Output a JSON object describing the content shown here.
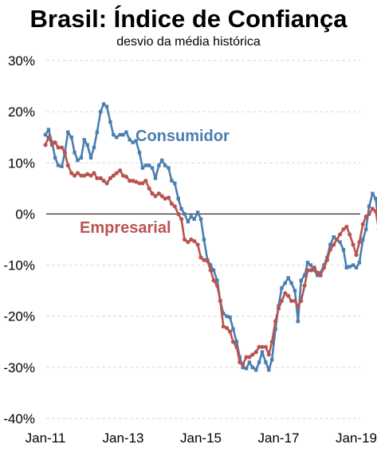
{
  "chart_data": {
    "type": "line",
    "title": "Brasil: Índice de Confiança",
    "subtitle": "desvio da média histórica",
    "xlabel": "",
    "ylabel": "",
    "x_range": [
      2011.0,
      2019.083
    ],
    "ylim": [
      -40,
      30
    ],
    "y_ticks": [
      30,
      20,
      10,
      0,
      -10,
      -20,
      -30,
      -40
    ],
    "y_tick_labels": [
      "30%",
      "20%",
      "10%",
      "0%",
      "-10%",
      "-20%",
      "-30%",
      "-40%"
    ],
    "x_ticks": [
      2011,
      2013,
      2015,
      2017,
      2019
    ],
    "x_tick_labels": [
      "Jan-11",
      "Jan-13",
      "Jan-15",
      "Jan-17",
      "Jan-19"
    ],
    "grid": true,
    "zero_line": true,
    "series": [
      {
        "name": "Consumidor",
        "color": "#4a7eb0",
        "marker": "square",
        "points": [
          [
            2011.0,
            15.5
          ],
          [
            2011.08,
            16.5
          ],
          [
            2011.17,
            14
          ],
          [
            2011.25,
            11
          ],
          [
            2011.33,
            9.5
          ],
          [
            2011.42,
            9.3
          ],
          [
            2011.5,
            12
          ],
          [
            2011.58,
            16
          ],
          [
            2011.67,
            15
          ],
          [
            2011.75,
            12
          ],
          [
            2011.83,
            10.5
          ],
          [
            2011.92,
            11
          ],
          [
            2012.0,
            14.5
          ],
          [
            2012.08,
            13.5
          ],
          [
            2012.17,
            11
          ],
          [
            2012.25,
            13
          ],
          [
            2012.33,
            16
          ],
          [
            2012.42,
            20
          ],
          [
            2012.5,
            21.5
          ],
          [
            2012.58,
            21
          ],
          [
            2012.67,
            18
          ],
          [
            2012.75,
            15.5
          ],
          [
            2012.83,
            15
          ],
          [
            2012.92,
            15.5
          ],
          [
            2013.0,
            15.5
          ],
          [
            2013.08,
            16
          ],
          [
            2013.17,
            14.5
          ],
          [
            2013.25,
            14
          ],
          [
            2013.33,
            14.3
          ],
          [
            2013.42,
            12
          ],
          [
            2013.5,
            9
          ],
          [
            2013.58,
            9.5
          ],
          [
            2013.67,
            9.5
          ],
          [
            2013.75,
            9
          ],
          [
            2013.83,
            7
          ],
          [
            2013.92,
            9.5
          ],
          [
            2014.0,
            10.5
          ],
          [
            2014.08,
            9.5
          ],
          [
            2014.17,
            9
          ],
          [
            2014.25,
            6.5
          ],
          [
            2014.33,
            6
          ],
          [
            2014.42,
            3
          ],
          [
            2014.5,
            1
          ],
          [
            2014.58,
            0
          ],
          [
            2014.67,
            -1.5
          ],
          [
            2014.75,
            -0.5
          ],
          [
            2014.83,
            -1
          ],
          [
            2014.92,
            0.3
          ],
          [
            2015.0,
            -1
          ],
          [
            2015.08,
            -5
          ],
          [
            2015.17,
            -9
          ],
          [
            2015.25,
            -10
          ],
          [
            2015.33,
            -11
          ],
          [
            2015.42,
            -13
          ],
          [
            2015.5,
            -17
          ],
          [
            2015.58,
            -19.5
          ],
          [
            2015.67,
            -20
          ],
          [
            2015.75,
            -20.2
          ],
          [
            2015.83,
            -22.5
          ],
          [
            2015.92,
            -25
          ],
          [
            2016.0,
            -28
          ],
          [
            2016.08,
            -30
          ],
          [
            2016.17,
            -30.2
          ],
          [
            2016.25,
            -29
          ],
          [
            2016.33,
            -30
          ],
          [
            2016.42,
            -30.5
          ],
          [
            2016.5,
            -29
          ],
          [
            2016.58,
            -27
          ],
          [
            2016.67,
            -29
          ],
          [
            2016.75,
            -30.5
          ],
          [
            2016.83,
            -28.5
          ],
          [
            2016.92,
            -22.5
          ],
          [
            2017.0,
            -18
          ],
          [
            2017.08,
            -14.5
          ],
          [
            2017.17,
            -13.5
          ],
          [
            2017.25,
            -12.5
          ],
          [
            2017.33,
            -13.5
          ],
          [
            2017.42,
            -15
          ],
          [
            2017.5,
            -21
          ],
          [
            2017.58,
            -13
          ],
          [
            2017.67,
            -12
          ],
          [
            2017.75,
            -9.5
          ],
          [
            2017.83,
            -10
          ],
          [
            2017.92,
            -11
          ],
          [
            2018.0,
            -12
          ],
          [
            2018.08,
            -11.5
          ],
          [
            2018.17,
            -10
          ],
          [
            2018.25,
            -8.5
          ],
          [
            2018.33,
            -6
          ],
          [
            2018.42,
            -4.5
          ],
          [
            2018.5,
            -5
          ],
          [
            2018.58,
            -5.5
          ],
          [
            2018.67,
            -7
          ],
          [
            2018.75,
            -10.5
          ],
          [
            2018.83,
            -10.3
          ],
          [
            2018.92,
            -10
          ],
          [
            2019.0,
            -10.5
          ],
          [
            2019.08,
            -9.5
          ],
          [
            2019.17,
            -5
          ],
          [
            2019.25,
            -3
          ],
          [
            2019.33,
            1.5
          ],
          [
            2019.42,
            4
          ],
          [
            2019.5,
            3
          ],
          [
            2019.58,
            -2
          ]
        ]
      },
      {
        "name": "Empresarial",
        "color": "#b85450",
        "marker": "circle",
        "points": [
          [
            2011.0,
            13.5
          ],
          [
            2011.08,
            15
          ],
          [
            2011.17,
            13.5
          ],
          [
            2011.25,
            14
          ],
          [
            2011.33,
            13
          ],
          [
            2011.42,
            13
          ],
          [
            2011.5,
            12
          ],
          [
            2011.58,
            9.5
          ],
          [
            2011.67,
            8
          ],
          [
            2011.75,
            7.5
          ],
          [
            2011.83,
            8
          ],
          [
            2011.92,
            7.5
          ],
          [
            2012.0,
            7.5
          ],
          [
            2012.08,
            7.8
          ],
          [
            2012.17,
            7.5
          ],
          [
            2012.25,
            8
          ],
          [
            2012.33,
            7
          ],
          [
            2012.42,
            7
          ],
          [
            2012.5,
            6.5
          ],
          [
            2012.58,
            6
          ],
          [
            2012.67,
            7
          ],
          [
            2012.75,
            7.5
          ],
          [
            2012.83,
            8
          ],
          [
            2012.92,
            8.5
          ],
          [
            2013.0,
            7.5
          ],
          [
            2013.08,
            7.3
          ],
          [
            2013.17,
            6.5
          ],
          [
            2013.25,
            6.5
          ],
          [
            2013.33,
            6.3
          ],
          [
            2013.42,
            6
          ],
          [
            2013.5,
            6
          ],
          [
            2013.58,
            6.5
          ],
          [
            2013.67,
            5
          ],
          [
            2013.75,
            4
          ],
          [
            2013.83,
            3.5
          ],
          [
            2013.92,
            4
          ],
          [
            2014.0,
            3.5
          ],
          [
            2014.08,
            3
          ],
          [
            2014.17,
            3.2
          ],
          [
            2014.25,
            2
          ],
          [
            2014.33,
            1.5
          ],
          [
            2014.42,
            0
          ],
          [
            2014.5,
            -1
          ],
          [
            2014.58,
            -5
          ],
          [
            2014.67,
            -5.5
          ],
          [
            2014.75,
            -5
          ],
          [
            2014.83,
            -5.3
          ],
          [
            2014.92,
            -6
          ],
          [
            2015.0,
            -8.5
          ],
          [
            2015.08,
            -9
          ],
          [
            2015.17,
            -9.2
          ],
          [
            2015.25,
            -11
          ],
          [
            2015.33,
            -13
          ],
          [
            2015.42,
            -14
          ],
          [
            2015.5,
            -17
          ],
          [
            2015.58,
            -22
          ],
          [
            2015.67,
            -22.3
          ],
          [
            2015.75,
            -23
          ],
          [
            2015.83,
            -25
          ],
          [
            2015.92,
            -26
          ],
          [
            2016.0,
            -29
          ],
          [
            2016.08,
            -29.5
          ],
          [
            2016.17,
            -28
          ],
          [
            2016.25,
            -28
          ],
          [
            2016.33,
            -27.5
          ],
          [
            2016.42,
            -27
          ],
          [
            2016.5,
            -26
          ],
          [
            2016.58,
            -26
          ],
          [
            2016.67,
            -26
          ],
          [
            2016.75,
            -27.5
          ],
          [
            2016.83,
            -25
          ],
          [
            2016.92,
            -21
          ],
          [
            2017.0,
            -18.5
          ],
          [
            2017.08,
            -17
          ],
          [
            2017.17,
            -15.5
          ],
          [
            2017.25,
            -16
          ],
          [
            2017.33,
            -17
          ],
          [
            2017.42,
            -17
          ],
          [
            2017.5,
            -18
          ],
          [
            2017.58,
            -17
          ],
          [
            2017.67,
            -14
          ],
          [
            2017.75,
            -11
          ],
          [
            2017.83,
            -11
          ],
          [
            2017.92,
            -10.5
          ],
          [
            2018.0,
            -11.5
          ],
          [
            2018.08,
            -12
          ],
          [
            2018.17,
            -10.5
          ],
          [
            2018.25,
            -9
          ],
          [
            2018.33,
            -7
          ],
          [
            2018.42,
            -6
          ],
          [
            2018.5,
            -5
          ],
          [
            2018.58,
            -4
          ],
          [
            2018.67,
            -3
          ],
          [
            2018.75,
            -2.5
          ],
          [
            2018.83,
            -4
          ],
          [
            2018.92,
            -6
          ],
          [
            2019.0,
            -8
          ],
          [
            2019.08,
            -5.5
          ],
          [
            2019.17,
            -2
          ],
          [
            2019.25,
            -0.5
          ],
          [
            2019.33,
            0
          ],
          [
            2019.42,
            1
          ],
          [
            2019.5,
            0.5
          ],
          [
            2019.58,
            -3
          ]
        ]
      }
    ]
  }
}
